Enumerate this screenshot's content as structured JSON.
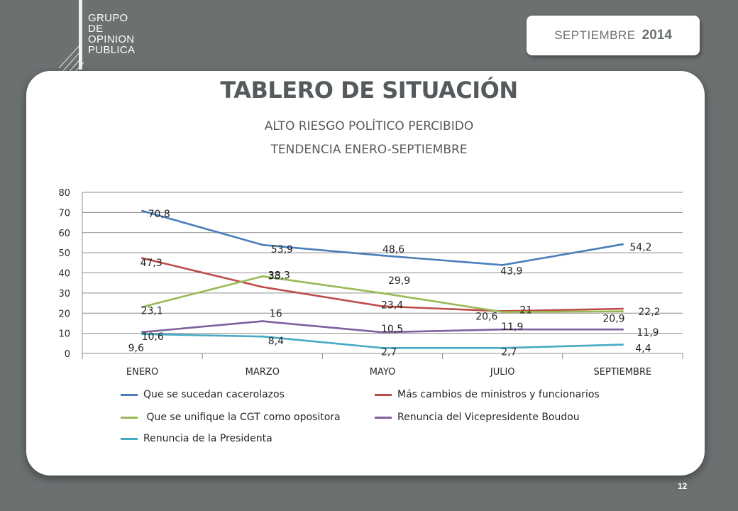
{
  "header": {
    "logo_lines": [
      "GRUPO",
      "DE",
      "OPINION",
      "PUBLICA"
    ],
    "date_month": "SEPTIEMBRE",
    "date_year": "2014"
  },
  "slide": {
    "title": "TABLERO DE SITUACIÓN",
    "subtitle_1": "ALTO  RIESGO POLÍTICO PERCIBIDO",
    "subtitle_2": "TENDENCIA ENERO-SEPTIEMBRE",
    "page_number": "12"
  },
  "chart_data": {
    "type": "line",
    "categories": [
      "ENERO",
      "MARZO",
      "MAYO",
      "JULIO",
      "SEPTIEMBRE"
    ],
    "ylim": [
      0,
      80
    ],
    "yticks": [
      0,
      10,
      20,
      30,
      40,
      50,
      60,
      70,
      80
    ],
    "grid": true,
    "legend_position": "bottom",
    "series": [
      {
        "name": "Que se sucedan cacerolazos",
        "color": "#4a7ebb",
        "values": [
          70.8,
          53.9,
          48.6,
          43.9,
          54.2
        ],
        "labels": [
          "70,8",
          "53,9",
          "48,6",
          "43,9",
          "54,2"
        ]
      },
      {
        "name": "Más cambios de ministros y funcionarios",
        "color": "#be4b48",
        "values": [
          47.3,
          33,
          23.4,
          21,
          22.2
        ],
        "labels": [
          "47,3",
          "33",
          "23,4",
          "21",
          "22,2"
        ]
      },
      {
        "name": " Que se unifique la CGT como opositora",
        "color": "#98b954",
        "values": [
          23.1,
          38.3,
          29.9,
          20.6,
          20.9
        ],
        "labels": [
          "23,1",
          "38,3",
          "29,9",
          "20,6",
          "20,9"
        ]
      },
      {
        "name": "Renuncia del Vicepresidente Boudou",
        "color": "#7d60a0",
        "values": [
          10.6,
          16,
          10.5,
          11.9,
          11.9
        ],
        "labels": [
          "10,6",
          "16",
          "10,5",
          "11,9",
          "11,9"
        ]
      },
      {
        "name": "Renuncia de la Presidenta",
        "color": "#46aac5",
        "values": [
          9.6,
          8.4,
          2.7,
          2.7,
          4.4
        ],
        "labels": [
          "9,6",
          "8,4",
          "2,7",
          "2,7",
          "4,4"
        ]
      }
    ]
  }
}
